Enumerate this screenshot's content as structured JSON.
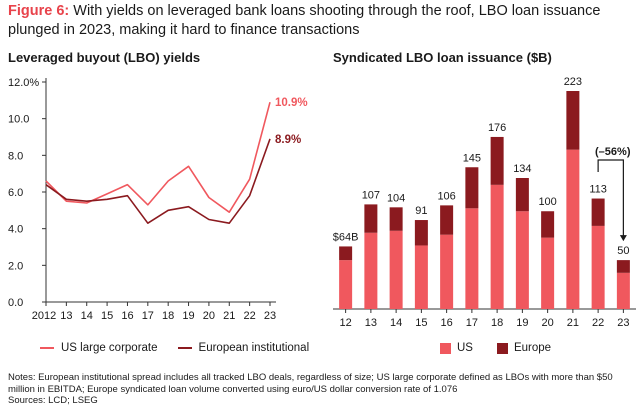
{
  "figure": {
    "label": "Figure 6:",
    "title": "With yields on leveraged bank loans shooting through the roof, LBO loan issuance plunged in 2023, making it hard to finance transactions"
  },
  "notes": {
    "text": "Notes: European institutional spread includes all tracked LBO deals, regardless of size; US large corporate defined as LBOs with more than $50 million in EBITDA; Europe syndicated loan volume converted using euro/US dollar conversion rate of 1.076",
    "sources": "Sources: LCD; LSEG"
  },
  "colors": {
    "us": "#f0585e",
    "europe": "#8b1a1f",
    "axis": "#333333"
  },
  "chart_data": [
    {
      "type": "line",
      "title": "Leveraged buyout (LBO) yields",
      "categories": [
        "2012",
        "13",
        "14",
        "15",
        "16",
        "17",
        "18",
        "19",
        "20",
        "21",
        "22",
        "23"
      ],
      "series": [
        {
          "name": "US large corporate",
          "values": [
            6.6,
            5.5,
            5.4,
            5.9,
            6.4,
            5.3,
            6.6,
            7.4,
            5.7,
            4.9,
            6.7,
            10.9
          ],
          "end_label": "10.9%",
          "color": "#f0585e"
        },
        {
          "name": "European institutional",
          "values": [
            6.4,
            5.6,
            5.5,
            5.6,
            5.8,
            4.3,
            5.0,
            5.2,
            4.5,
            4.3,
            5.8,
            8.9
          ],
          "end_label": "8.9%",
          "color": "#8b1a1f"
        }
      ],
      "yticks": [
        "12.0%",
        "10.0",
        "8.0",
        "6.0",
        "4.0",
        "2.0",
        "0.0"
      ],
      "ylim": [
        0,
        12
      ],
      "legend": "bottom"
    },
    {
      "type": "bar",
      "title": "Syndicated LBO loan issuance ($B)",
      "categories": [
        "12",
        "13",
        "14",
        "15",
        "16",
        "17",
        "18",
        "19",
        "20",
        "21",
        "22",
        "23"
      ],
      "series": [
        {
          "name": "US",
          "values": [
            50,
            78,
            80,
            65,
            76,
            103,
            127,
            100,
            73,
            163,
            85,
            37
          ],
          "color": "#f0585e"
        },
        {
          "name": "Europe",
          "values": [
            14,
            29,
            24,
            26,
            30,
            42,
            49,
            34,
            27,
            60,
            28,
            13
          ],
          "color": "#8b1a1f"
        }
      ],
      "total_labels": [
        "$64B",
        "107",
        "104",
        "91",
        "106",
        "145",
        "176",
        "134",
        "100",
        "223",
        "113",
        "50"
      ],
      "annotation": "(–56%)",
      "ylim": [
        0,
        223
      ],
      "legend": "bottom"
    }
  ]
}
